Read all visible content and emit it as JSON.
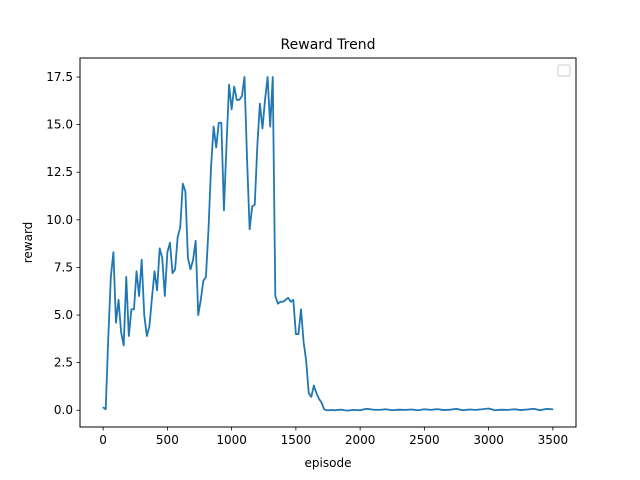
{
  "chart_data": {
    "type": "line",
    "title": "Reward Trend",
    "xlabel": "episode",
    "ylabel": "reward",
    "xlim": [
      -180,
      3680
    ],
    "ylim": [
      -0.88,
      18.5
    ],
    "xticks": [
      0,
      500,
      1000,
      1500,
      2000,
      2500,
      3000,
      3500
    ],
    "xtick_labels": [
      "0",
      "500",
      "1000",
      "1500",
      "2000",
      "2500",
      "3000",
      "3500"
    ],
    "yticks": [
      0.0,
      2.5,
      5.0,
      7.5,
      10.0,
      12.5,
      15.0,
      17.5
    ],
    "ytick_labels": [
      "0.0",
      "2.5",
      "5.0",
      "7.5",
      "10.0",
      "12.5",
      "15.0",
      "17.5"
    ],
    "grid": false,
    "legend": {
      "position": "top-right",
      "entries": []
    },
    "colors": {
      "line": "#1f77b4",
      "axes": "#000000",
      "background": "#ffffff"
    },
    "series": [
      {
        "x": [
          0,
          20,
          40,
          60,
          80,
          100,
          120,
          140,
          160,
          180,
          200,
          220,
          240,
          260,
          280,
          300,
          320,
          340,
          360,
          380,
          400,
          420,
          440,
          460,
          480,
          500,
          520,
          540,
          560,
          580,
          600,
          620,
          640,
          660,
          680,
          700,
          720,
          740,
          760,
          780,
          800,
          820,
          840,
          860,
          880,
          900,
          920,
          940,
          960,
          980,
          1000,
          1020,
          1040,
          1060,
          1080,
          1100,
          1120,
          1140,
          1160,
          1180,
          1200,
          1220,
          1240,
          1260,
          1280,
          1300,
          1320,
          1340,
          1360,
          1380,
          1400,
          1420,
          1440,
          1460,
          1480,
          1500,
          1520,
          1540,
          1560,
          1580,
          1600,
          1620,
          1640,
          1660,
          1680,
          1700,
          1720,
          1740,
          1760,
          1780,
          1800,
          1850,
          1900,
          1950,
          2000,
          2050,
          2100,
          2150,
          2200,
          2250,
          2300,
          2350,
          2400,
          2450,
          2500,
          2550,
          2600,
          2650,
          2700,
          2750,
          2800,
          2850,
          2900,
          2950,
          3000,
          3050,
          3100,
          3150,
          3200,
          3250,
          3300,
          3350,
          3400,
          3450,
          3500
        ],
        "y": [
          0.15,
          0.05,
          3.8,
          7.0,
          8.3,
          4.6,
          5.8,
          4.1,
          3.4,
          7.0,
          3.9,
          5.3,
          5.3,
          7.3,
          6.0,
          7.9,
          5.0,
          3.9,
          4.4,
          5.9,
          7.3,
          6.3,
          8.5,
          8.0,
          6.0,
          8.3,
          8.8,
          7.2,
          7.4,
          9.1,
          9.6,
          11.9,
          11.5,
          8.0,
          7.4,
          7.9,
          8.9,
          5.0,
          5.8,
          6.8,
          7.0,
          9.5,
          12.8,
          14.9,
          13.8,
          15.1,
          15.1,
          10.5,
          13.9,
          17.1,
          15.8,
          17.0,
          16.3,
          16.3,
          16.5,
          17.5,
          13.2,
          9.5,
          10.7,
          10.8,
          13.9,
          16.1,
          14.8,
          16.3,
          17.5,
          14.9,
          17.5,
          6.0,
          5.6,
          5.7,
          5.7,
          5.8,
          5.9,
          5.7,
          5.8,
          4.0,
          4.0,
          5.3,
          3.6,
          2.6,
          0.9,
          0.7,
          1.3,
          0.9,
          0.6,
          0.4,
          0.05,
          0.0,
          0.0,
          0.02,
          0.0,
          0.03,
          -0.02,
          0.02,
          0.0,
          0.08,
          0.03,
          0.02,
          0.05,
          0.0,
          0.03,
          0.02,
          0.04,
          0.0,
          0.05,
          0.02,
          0.06,
          0.01,
          0.03,
          0.07,
          0.0,
          0.04,
          0.02,
          0.05,
          0.09,
          0.0,
          0.03,
          0.02,
          0.05,
          0.01,
          0.04,
          0.08,
          0.0,
          0.07,
          0.05
        ]
      }
    ]
  }
}
